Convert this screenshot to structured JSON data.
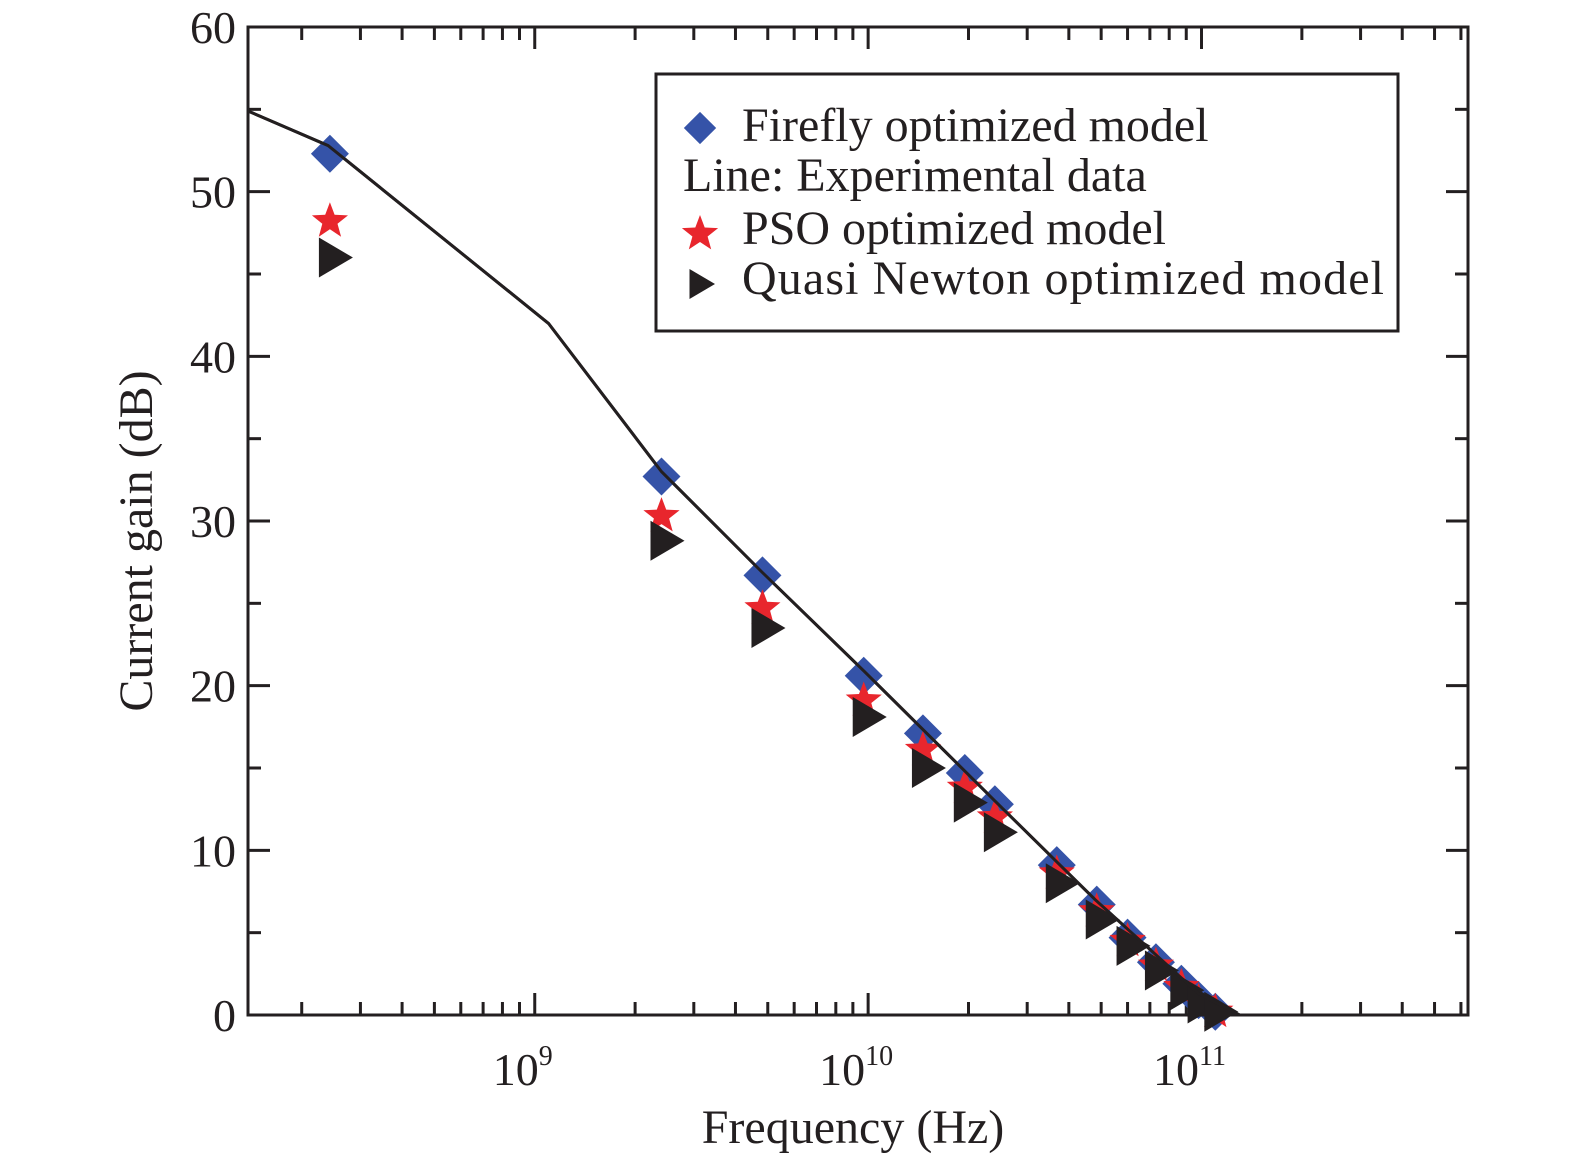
{
  "chart_data": {
    "type": "scatter",
    "title": "",
    "xlabel": "Frequency (Hz)",
    "ylabel": "Current gain (dB)",
    "xscale": "log",
    "xlim": [
      138000000.0,
      630000000000.0
    ],
    "ylim": [
      0,
      60
    ],
    "grid": false,
    "x_ticks": [
      {
        "value": 1000000000.0,
        "base": "10",
        "exp": "9"
      },
      {
        "value": 10000000000.0,
        "base": "10",
        "exp": "10"
      },
      {
        "value": 100000000000.0,
        "base": "10",
        "exp": "11"
      }
    ],
    "y_ticks": [
      0,
      10,
      20,
      30,
      40,
      50,
      60
    ],
    "legend": {
      "placement": "top-right",
      "entries": [
        {
          "label": "Firefly optimized model",
          "marker": "diamond",
          "color": "#3553a8"
        },
        {
          "label": "Line: Experimental data",
          "marker": "none",
          "color": "#231f20"
        },
        {
          "label": "PSO optimized model",
          "marker": "star",
          "color": "#e8262d"
        },
        {
          "label": "Quasi Newton optimized model",
          "marker": "triangle-right",
          "color": "#231f20"
        }
      ]
    },
    "series": [
      {
        "name": "Experimental data",
        "kind": "line",
        "color": "#231f20",
        "x": [
          138000000.0,
          240000000.0,
          1100000000.0,
          2400000000.0,
          4800000000.0,
          9700000000.0,
          24000000000.0,
          48000000000.0,
          98000000000.0,
          130000000000.0
        ],
        "y": [
          54.9,
          52.8,
          42.0,
          33.0,
          26.9,
          20.9,
          13.0,
          7.0,
          1.3,
          0.0
        ]
      },
      {
        "name": "Firefly optimized model",
        "kind": "scatter",
        "marker": "diamond",
        "color": "#3553a8",
        "x": [
          243000000.0,
          2400000000.0,
          4820000000.0,
          9700000000.0,
          14600000000.0,
          19500000000.0,
          24000000000.0,
          36800000000.0,
          48500000000.0,
          60000000000.0,
          73000000000.0,
          87000000000.0,
          98000000000.0,
          110000000000.0
        ],
        "y": [
          52.3,
          32.7,
          26.7,
          20.6,
          17.1,
          14.7,
          12.8,
          9.1,
          6.7,
          4.7,
          3.2,
          1.9,
          0.9,
          0.2
        ]
      },
      {
        "name": "PSO optimized model",
        "kind": "scatter",
        "marker": "star",
        "color": "#e8262d",
        "x": [
          243000000.0,
          2400000000.0,
          4820000000.0,
          9700000000.0,
          14600000000.0,
          19500000000.0,
          24000000000.0,
          36800000000.0,
          48500000000.0,
          60000000000.0,
          73000000000.0,
          87000000000.0,
          98000000000.0,
          110000000000.0
        ],
        "y": [
          48.2,
          30.3,
          24.7,
          19.1,
          16.1,
          13.8,
          12.0,
          8.6,
          6.3,
          4.5,
          3.0,
          1.7,
          0.8,
          0.2
        ]
      },
      {
        "name": "Quasi Newton optimized model",
        "kind": "scatter",
        "marker": "triangle-right",
        "color": "#231f20",
        "x": [
          243000000.0,
          2400000000.0,
          4820000000.0,
          9700000000.0,
          14600000000.0,
          19500000000.0,
          24000000000.0,
          36800000000.0,
          48500000000.0,
          60000000000.0,
          73000000000.0,
          87000000000.0,
          98000000000.0,
          110000000000.0
        ],
        "y": [
          46.0,
          28.8,
          23.5,
          18.1,
          15.0,
          12.9,
          11.1,
          8.0,
          5.8,
          4.2,
          2.7,
          1.5,
          0.7,
          0.2
        ]
      }
    ]
  }
}
